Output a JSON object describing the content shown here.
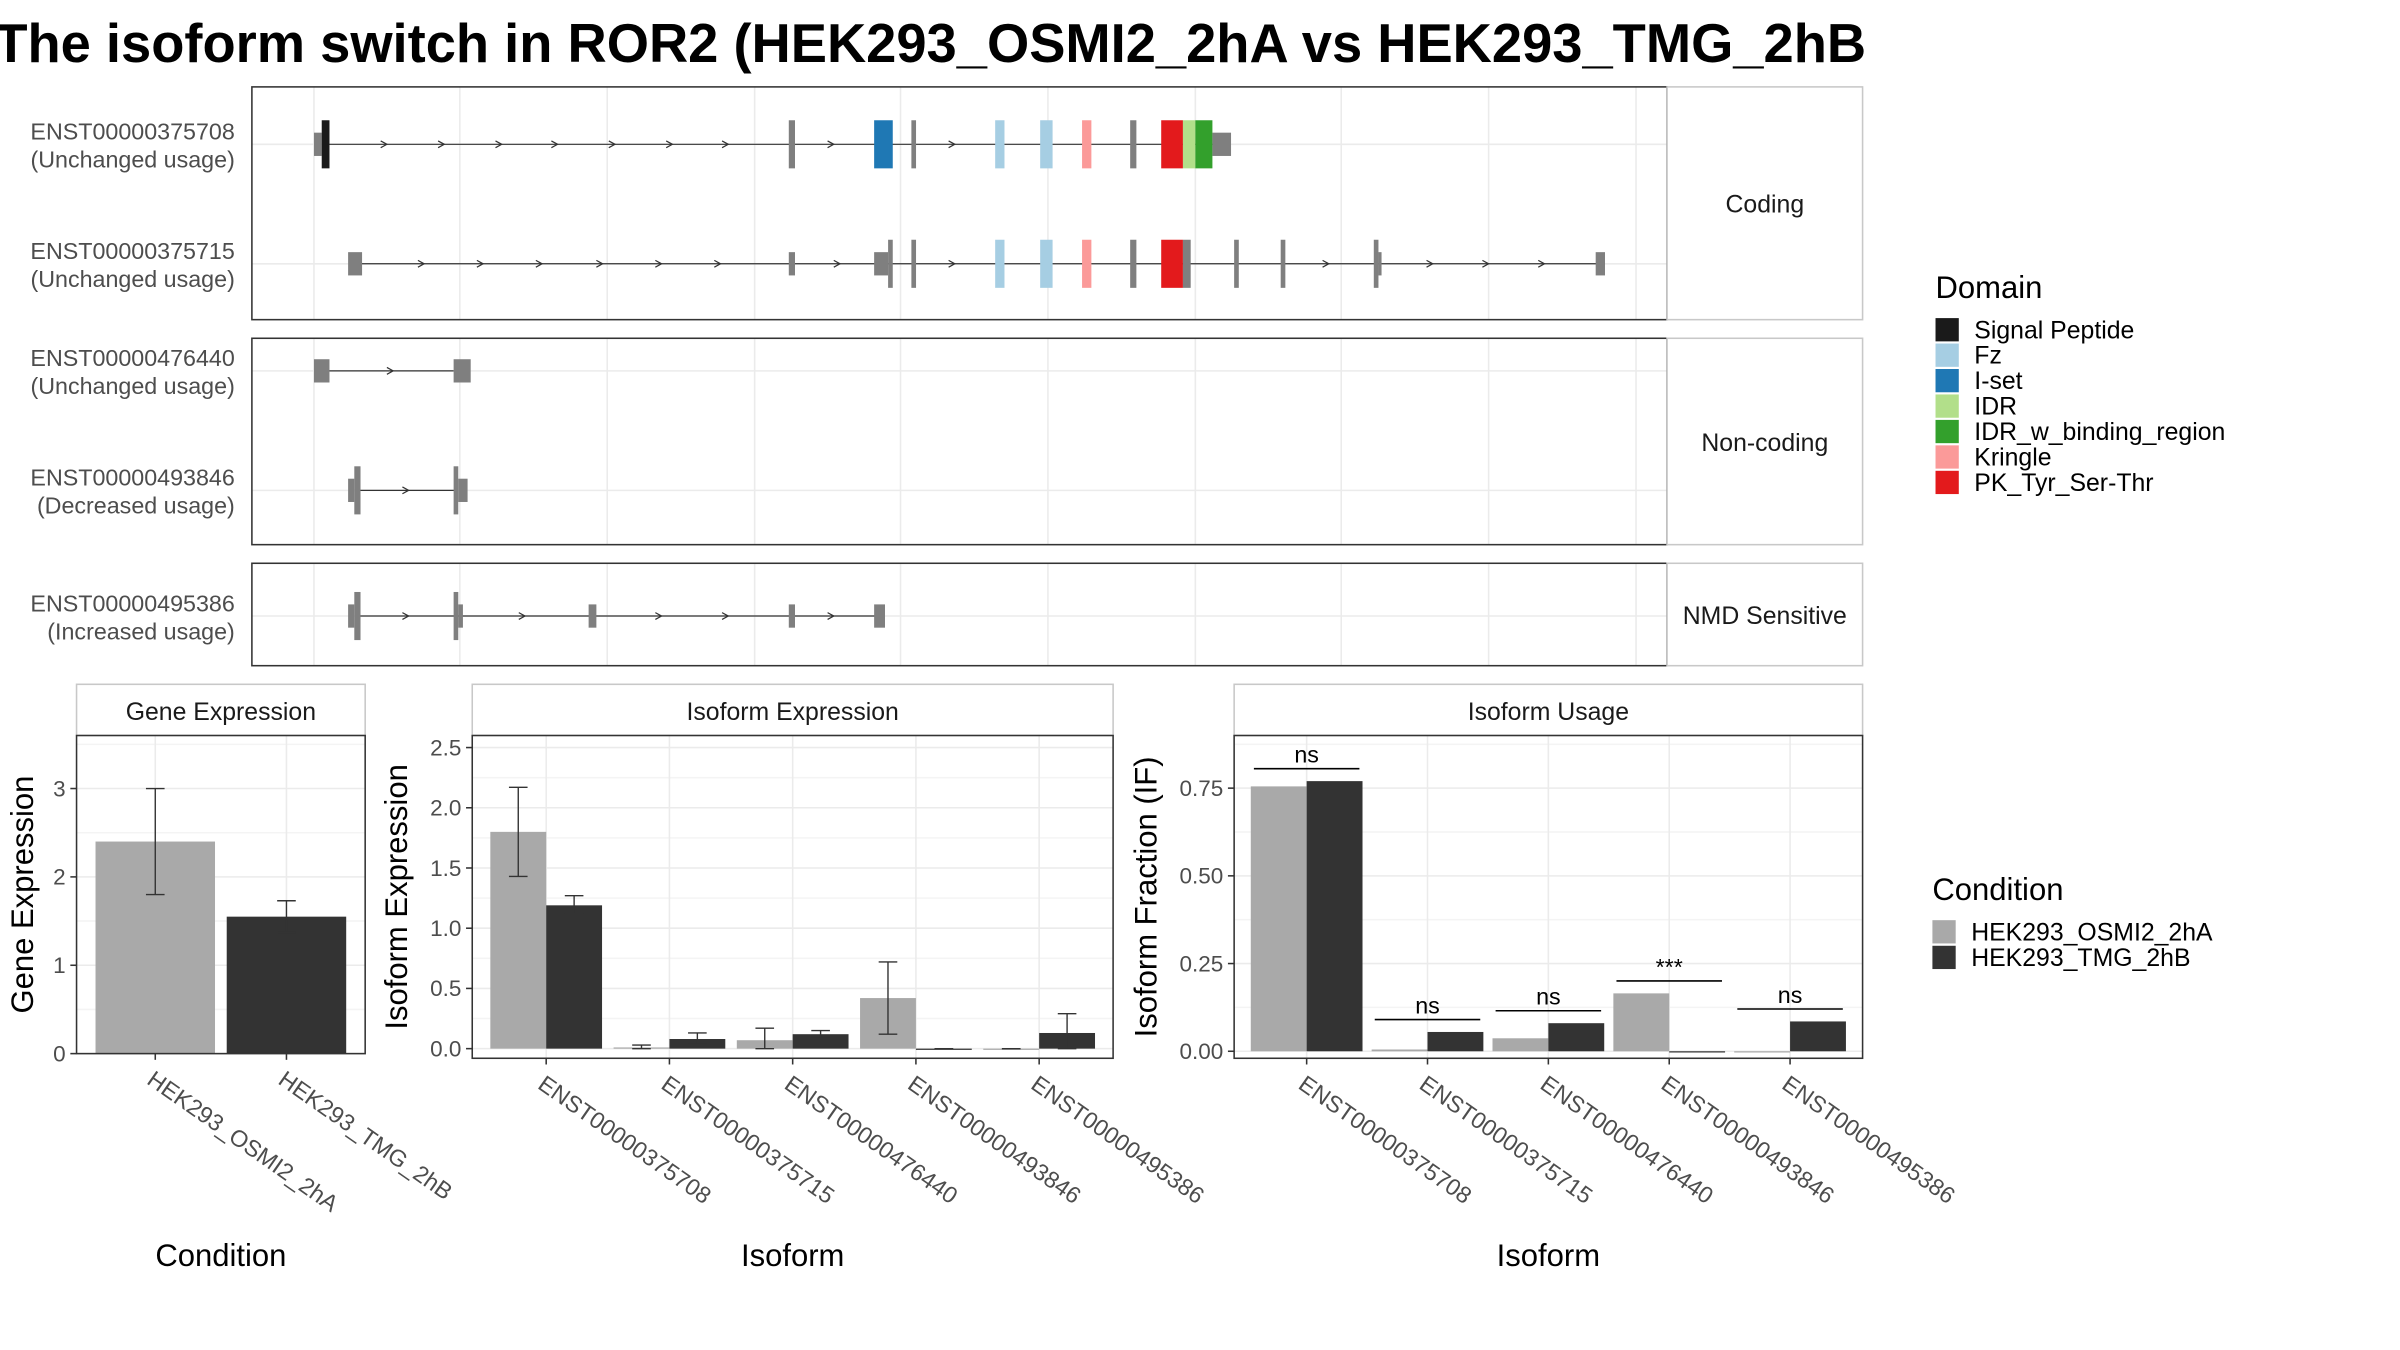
{
  "title": "The isoform switch in ROR2 (HEK293_OSMI2_2hA vs HEK293_TMG_2hB",
  "colors": {
    "Signal Peptide": "#1a1a1a",
    "Fz": "#a6cee3",
    "I-set": "#1f78b4",
    "IDR": "#b2df8a",
    "IDR_w_binding_region": "#33a02c",
    "Kringle": "#fb9a99",
    "PK_Tyr_Ser-Thr": "#e31a1c",
    "exon": "#7f7f7f",
    "condA": "#a9a9a9",
    "condB": "#333333",
    "grid": "#ebebeb",
    "panel_border": "#333333",
    "strip_border": "#c8c8c8"
  },
  "structure": {
    "domain_legend_title": "Domain",
    "domain_legend": [
      "Signal Peptide",
      "Fz",
      "I-set",
      "IDR",
      "IDR_w_binding_region",
      "Kringle",
      "PK_Tyr_Ser-Thr"
    ],
    "facets": [
      {
        "label": "Coding",
        "isoforms": [
          {
            "id": "ENST00000375708",
            "usage": "(Unchanged usage)",
            "span": [
              210,
              782
            ],
            "exons": [
              {
                "s": 202,
                "e": 207,
                "h": "small",
                "c": "exon"
              },
              {
                "s": 207,
                "e": 212,
                "h": "big",
                "c": "Signal Peptide"
              },
              {
                "s": 508,
                "e": 512,
                "h": "big",
                "c": "exon"
              },
              {
                "s": 563,
                "e": 575,
                "h": "big",
                "c": "I-set"
              },
              {
                "s": 587,
                "e": 590,
                "h": "big",
                "c": "exon"
              },
              {
                "s": 641,
                "e": 647,
                "h": "big",
                "c": "Fz"
              },
              {
                "s": 670,
                "e": 678,
                "h": "big",
                "c": "Fz"
              },
              {
                "s": 697,
                "e": 703,
                "h": "big",
                "c": "Kringle"
              },
              {
                "s": 728,
                "e": 732,
                "h": "big",
                "c": "exon"
              },
              {
                "s": 748,
                "e": 762,
                "h": "big",
                "c": "PK_Tyr_Ser-Thr"
              },
              {
                "s": 762,
                "e": 770,
                "h": "big",
                "c": "IDR"
              },
              {
                "s": 770,
                "e": 781,
                "h": "big",
                "c": "IDR_w_binding_region"
              },
              {
                "s": 781,
                "e": 793,
                "h": "small",
                "c": "exon"
              }
            ],
            "arrows": [
              248,
              285,
              322,
              358,
              395,
              432,
              468,
              536,
              614
            ]
          },
          {
            "id": "ENST00000375715",
            "usage": "(Unchanged usage)",
            "span": [
              232,
              1030
            ],
            "exons": [
              {
                "s": 224,
                "e": 233,
                "h": "small",
                "c": "exon"
              },
              {
                "s": 508,
                "e": 512,
                "h": "small",
                "c": "exon"
              },
              {
                "s": 563,
                "e": 572,
                "h": "small",
                "c": "exon"
              },
              {
                "s": 572,
                "e": 575,
                "h": "big",
                "c": "exon"
              },
              {
                "s": 587,
                "e": 590,
                "h": "big",
                "c": "exon"
              },
              {
                "s": 641,
                "e": 647,
                "h": "big",
                "c": "Fz"
              },
              {
                "s": 670,
                "e": 678,
                "h": "big",
                "c": "Fz"
              },
              {
                "s": 697,
                "e": 703,
                "h": "big",
                "c": "Kringle"
              },
              {
                "s": 728,
                "e": 732,
                "h": "big",
                "c": "exon"
              },
              {
                "s": 748,
                "e": 762,
                "h": "big",
                "c": "PK_Tyr_Ser-Thr"
              },
              {
                "s": 762,
                "e": 767,
                "h": "big",
                "c": "exon"
              },
              {
                "s": 795,
                "e": 798,
                "h": "big",
                "c": "exon"
              },
              {
                "s": 825,
                "e": 828,
                "h": "big",
                "c": "exon"
              },
              {
                "s": 885,
                "e": 888,
                "h": "big",
                "c": "exon"
              },
              {
                "s": 888,
                "e": 890,
                "h": "small",
                "c": "exon"
              },
              {
                "s": 1028,
                "e": 1034,
                "h": "small",
                "c": "exon"
              }
            ],
            "arrows": [
              272,
              310,
              348,
              387,
              425,
              463,
              540,
              614,
              855,
              922,
              958,
              994
            ]
          }
        ]
      },
      {
        "label": "Non-coding",
        "isoforms": [
          {
            "id": "ENST00000476440",
            "usage": "(Unchanged usage)",
            "span": [
              212,
              292
            ],
            "exons": [
              {
                "s": 202,
                "e": 212,
                "h": "small",
                "c": "exon"
              },
              {
                "s": 292,
                "e": 303,
                "h": "small",
                "c": "exon"
              }
            ],
            "arrows": [
              252
            ]
          },
          {
            "id": "ENST00000493846",
            "usage": "(Decreased usage)",
            "span": [
              232,
              293
            ],
            "exons": [
              {
                "s": 224,
                "e": 228,
                "h": "small",
                "c": "exon"
              },
              {
                "s": 228,
                "e": 232,
                "h": "big",
                "c": "exon"
              },
              {
                "s": 292,
                "e": 295,
                "h": "big",
                "c": "exon"
              },
              {
                "s": 295,
                "e": 301,
                "h": "small",
                "c": "exon"
              }
            ],
            "arrows": [
              262
            ]
          }
        ]
      },
      {
        "label": "NMD Sensitive",
        "isoforms": [
          {
            "id": "ENST00000495386",
            "usage": "(Increased usage)",
            "span": [
              232,
              566
            ],
            "exons": [
              {
                "s": 224,
                "e": 228,
                "h": "small",
                "c": "exon"
              },
              {
                "s": 228,
                "e": 232,
                "h": "big",
                "c": "exon"
              },
              {
                "s": 292,
                "e": 295,
                "h": "big",
                "c": "exon"
              },
              {
                "s": 295,
                "e": 298,
                "h": "small",
                "c": "exon"
              },
              {
                "s": 379,
                "e": 384,
                "h": "small",
                "c": "exon"
              },
              {
                "s": 508,
                "e": 512,
                "h": "small",
                "c": "exon"
              },
              {
                "s": 563,
                "e": 570,
                "h": "small",
                "c": "exon"
              }
            ],
            "arrows": [
              262,
              337,
              425,
              468,
              536
            ]
          }
        ]
      }
    ]
  },
  "chart_data": [
    {
      "type": "bar",
      "panel": "Gene Expression",
      "xlabel": "Condition",
      "ylabel": "Gene Expression",
      "categories": [
        "HEK293_OSMI2_2hA",
        "HEK293_TMG_2hB"
      ],
      "values": [
        2.4,
        1.55
      ],
      "error": [
        [
          1.8,
          3.0
        ],
        [
          1.37,
          1.73
        ]
      ],
      "ylim": [
        0,
        3.6
      ],
      "yticks": [
        "0",
        "1",
        "2",
        "3"
      ],
      "ytick_values": [
        0,
        1,
        2,
        3
      ]
    },
    {
      "type": "bar",
      "panel": "Isoform Expression",
      "xlabel": "Isoform",
      "ylabel": "Isoform Expression",
      "categories": [
        "ENST00000375708",
        "ENST00000375715",
        "ENST00000476440",
        "ENST00000493846",
        "ENST00000495386"
      ],
      "series": [
        {
          "name": "HEK293_OSMI2_2hA",
          "values": [
            1.8,
            0.01,
            0.07,
            0.42,
            0.0
          ],
          "error": [
            [
              1.43,
              2.17
            ],
            [
              0.0,
              0.03
            ],
            [
              0.0,
              0.17
            ],
            [
              0.12,
              0.72
            ],
            [
              0.0,
              0.0
            ]
          ]
        },
        {
          "name": "HEK293_TMG_2hB",
          "values": [
            1.19,
            0.08,
            0.12,
            0.0,
            0.13
          ],
          "error": [
            [
              1.12,
              1.27
            ],
            [
              0.04,
              0.13
            ],
            [
              0.09,
              0.15
            ],
            [
              0.0,
              0.0
            ],
            [
              0.0,
              0.29
            ]
          ]
        }
      ],
      "ylim": [
        -0.08,
        2.6
      ],
      "yticks": [
        "0.0",
        "0.5",
        "1.0",
        "1.5",
        "2.0",
        "2.5"
      ],
      "ytick_values": [
        0,
        0.5,
        1.0,
        1.5,
        2.0,
        2.5
      ]
    },
    {
      "type": "bar",
      "panel": "Isoform Usage",
      "xlabel": "Isoform",
      "ylabel": "Isoform Fraction (IF)",
      "categories": [
        "ENST00000375708",
        "ENST00000375715",
        "ENST00000476440",
        "ENST00000493846",
        "ENST00000495386"
      ],
      "series": [
        {
          "name": "HEK293_OSMI2_2hA",
          "values": [
            0.755,
            0.005,
            0.037,
            0.165,
            0.0
          ]
        },
        {
          "name": "HEK293_TMG_2hB",
          "values": [
            0.77,
            0.055,
            0.08,
            0.0,
            0.085
          ]
        }
      ],
      "significance": [
        "ns",
        "ns",
        "ns",
        "***",
        "ns"
      ],
      "ylim": [
        -0.02,
        0.9
      ],
      "yticks": [
        "0.00",
        "0.25",
        "0.50",
        "0.75"
      ],
      "ytick_values": [
        0,
        0.25,
        0.5,
        0.75
      ]
    }
  ],
  "condition_legend_title": "Condition",
  "condition_legend": [
    "HEK293_OSMI2_2hA",
    "HEK293_TMG_2hB"
  ]
}
